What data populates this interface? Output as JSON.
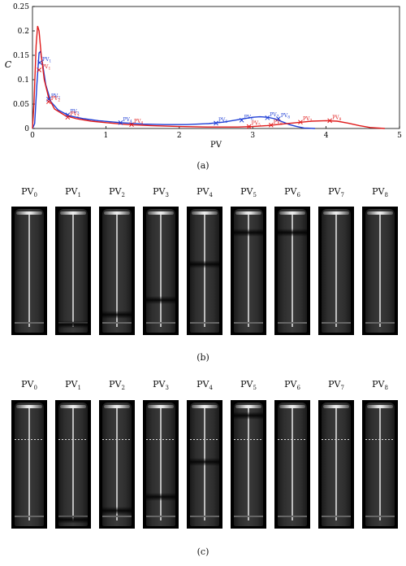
{
  "chart_data": {
    "type": "line",
    "xlabel": "PV",
    "ylabel": "C",
    "xlim": [
      0,
      5
    ],
    "ylim": [
      0,
      0.25
    ],
    "xticks": [
      "0",
      "1",
      "2",
      "3",
      "4",
      "5"
    ],
    "yticks": [
      "0",
      "0.05",
      "0.1",
      "0.15",
      "0.2",
      "0.25"
    ],
    "grid": false,
    "series": [
      {
        "color": "#1f3fd6",
        "x": [
          0.0,
          0.03,
          0.06,
          0.09,
          0.11,
          0.14,
          0.18,
          0.25,
          0.35,
          0.5,
          0.7,
          0.9,
          1.2,
          1.5,
          1.8,
          2.1,
          2.4,
          2.6,
          2.8,
          3.0,
          3.1,
          3.2,
          3.3,
          3.4,
          3.5,
          3.6,
          3.7,
          3.85
        ],
        "y": [
          0.0,
          0.01,
          0.09,
          0.155,
          0.158,
          0.13,
          0.09,
          0.055,
          0.038,
          0.026,
          0.02,
          0.016,
          0.012,
          0.009,
          0.008,
          0.008,
          0.01,
          0.013,
          0.018,
          0.023,
          0.024,
          0.023,
          0.02,
          0.014,
          0.008,
          0.004,
          0.001,
          0.0
        ]
      },
      {
        "color": "#e01b1b",
        "x": [
          0.0,
          0.02,
          0.05,
          0.07,
          0.09,
          0.12,
          0.16,
          0.22,
          0.3,
          0.45,
          0.6,
          0.8,
          1.0,
          1.3,
          1.6,
          2.0,
          2.4,
          2.8,
          3.0,
          3.2,
          3.4,
          3.6,
          3.8,
          4.0,
          4.15,
          4.3,
          4.45,
          4.6,
          4.8
        ],
        "y": [
          0.0,
          0.05,
          0.17,
          0.21,
          0.2,
          0.15,
          0.1,
          0.063,
          0.04,
          0.026,
          0.02,
          0.015,
          0.012,
          0.008,
          0.006,
          0.004,
          0.003,
          0.003,
          0.004,
          0.006,
          0.009,
          0.012,
          0.015,
          0.016,
          0.015,
          0.011,
          0.006,
          0.002,
          0.0
        ]
      }
    ],
    "markers": [
      {
        "series": 0,
        "x": 0.1,
        "y": 0.135,
        "label": "PV",
        "sub": "1"
      },
      {
        "series": 0,
        "x": 0.22,
        "y": 0.06,
        "label": "PV",
        "sub": "2"
      },
      {
        "series": 0,
        "x": 0.48,
        "y": 0.028,
        "label": "PV",
        "sub": "3"
      },
      {
        "series": 0,
        "x": 1.2,
        "y": 0.012,
        "label": "PV",
        "sub": "4"
      },
      {
        "series": 0,
        "x": 2.5,
        "y": 0.011,
        "label": "PV",
        "sub": "5"
      },
      {
        "series": 0,
        "x": 2.85,
        "y": 0.017,
        "label": "PV",
        "sub": "6"
      },
      {
        "series": 0,
        "x": 3.2,
        "y": 0.022,
        "label": "PV",
        "sub": "7"
      },
      {
        "series": 0,
        "x": 3.35,
        "y": 0.02,
        "label": "PV",
        "sub": "8"
      },
      {
        "series": 1,
        "x": 0.09,
        "y": 0.12,
        "label": "PV",
        "sub": "1"
      },
      {
        "series": 1,
        "x": 0.22,
        "y": 0.055,
        "label": "PV",
        "sub": "2"
      },
      {
        "series": 1,
        "x": 0.48,
        "y": 0.023,
        "label": "PV",
        "sub": "3"
      },
      {
        "series": 1,
        "x": 1.35,
        "y": 0.008,
        "label": "PV",
        "sub": "4"
      },
      {
        "series": 1,
        "x": 2.95,
        "y": 0.004,
        "label": "PV",
        "sub": "5"
      },
      {
        "series": 1,
        "x": 3.25,
        "y": 0.007,
        "label": "PV",
        "sub": "6"
      },
      {
        "series": 1,
        "x": 3.65,
        "y": 0.013,
        "label": "PV",
        "sub": "7"
      },
      {
        "series": 1,
        "x": 4.05,
        "y": 0.016,
        "label": "PV",
        "sub": "8"
      }
    ]
  },
  "captions": {
    "a": "(a)",
    "b": "(b)",
    "c": "(c)"
  },
  "panel_labels": [
    "0",
    "1",
    "2",
    "3",
    "4",
    "5",
    "6",
    "7",
    "8"
  ],
  "panel_label_prefix": "PV",
  "rows": {
    "b": {
      "front_fraction": [
        null,
        0.92,
        0.84,
        0.73,
        0.45,
        0.2,
        0.2,
        null,
        null
      ]
    },
    "c": {
      "front_fraction": [
        null,
        0.93,
        0.86,
        0.75,
        0.48,
        0.12,
        null,
        null,
        null
      ]
    }
  }
}
